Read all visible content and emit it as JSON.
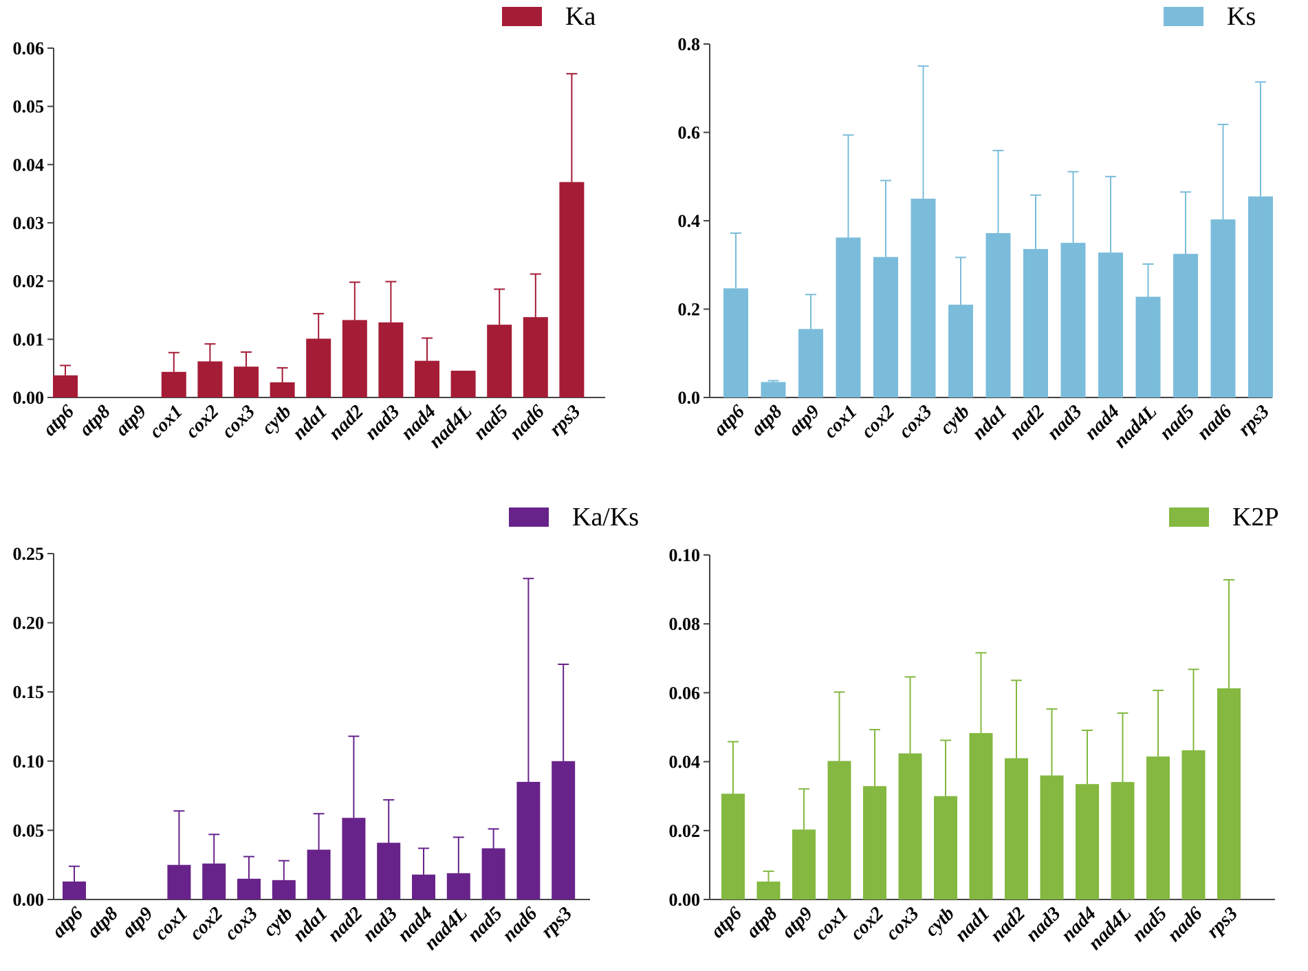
{
  "chart_data": [
    {
      "type": "bar",
      "legend": "Ka",
      "color": "#A51C36",
      "categories": [
        "atp6",
        "atp8",
        "atp9",
        "cox1",
        "cox2",
        "cox3",
        "cytb",
        "nda1",
        "nad2",
        "nad3",
        "nad4",
        "nad4L",
        "nad5",
        "nad6",
        "rps3"
      ],
      "values": [
        0.0038,
        0,
        0,
        0.0044,
        0.0062,
        0.0053,
        0.0026,
        0.0101,
        0.0133,
        0.0129,
        0.0063,
        0.0046,
        0.0125,
        0.0138,
        0.037
      ],
      "errors": [
        0.0017,
        0,
        0,
        0.0033,
        0.003,
        0.0025,
        0.0025,
        0.0043,
        0.0065,
        0.007,
        0.0039,
        0,
        0.0061,
        0.0074,
        0.0186
      ],
      "ylim": [
        0,
        0.06
      ],
      "yticks": [
        "0.00",
        "0.01",
        "0.02",
        "0.03",
        "0.04",
        "0.05",
        "0.06"
      ],
      "title": "",
      "xlabel": "",
      "ylabel": "",
      "legend_position": "top-right"
    },
    {
      "type": "bar",
      "legend": "Ks",
      "color": "#7BBCDB",
      "categories": [
        "atp6",
        "atp8",
        "atp9",
        "cox1",
        "cox2",
        "cox3",
        "cytb",
        "nda1",
        "nad2",
        "nad3",
        "nad4",
        "nad4L",
        "nad5",
        "nad6",
        "rps3"
      ],
      "values": [
        0.247,
        0.035,
        0.155,
        0.362,
        0.318,
        0.45,
        0.21,
        0.372,
        0.336,
        0.35,
        0.328,
        0.228,
        0.325,
        0.403,
        0.455
      ],
      "errors": [
        0.125,
        0.003,
        0.078,
        0.232,
        0.173,
        0.3,
        0.107,
        0.187,
        0.122,
        0.161,
        0.172,
        0.074,
        0.14,
        0.215,
        0.259
      ],
      "ylim": [
        0,
        0.8
      ],
      "yticks": [
        "0.0",
        "0.2",
        "0.4",
        "0.6",
        "0.8"
      ],
      "title": "",
      "xlabel": "",
      "ylabel": "",
      "legend_position": "top-right"
    },
    {
      "type": "bar",
      "legend": "Ka/Ks",
      "color": "#68238A",
      "categories": [
        "atp6",
        "atp8",
        "atp9",
        "cox1",
        "cox2",
        "cox3",
        "cytb",
        "nda1",
        "nad2",
        "nad3",
        "nad4",
        "nad4L",
        "nad5",
        "nad6",
        "rps3"
      ],
      "values": [
        0.013,
        0,
        0,
        0.025,
        0.026,
        0.015,
        0.014,
        0.036,
        0.059,
        0.041,
        0.018,
        0.019,
        0.037,
        0.085,
        0.1
      ],
      "errors": [
        0.011,
        0,
        0,
        0.039,
        0.021,
        0.016,
        0.014,
        0.026,
        0.059,
        0.031,
        0.019,
        0.026,
        0.014,
        0.147,
        0.07
      ],
      "ylim": [
        0,
        0.25
      ],
      "yticks": [
        "0.00",
        "0.05",
        "0.10",
        "0.15",
        "0.20",
        "0.25"
      ],
      "title": "",
      "xlabel": "",
      "ylabel": "",
      "legend_position": "top-right"
    },
    {
      "type": "bar",
      "legend": "K2P",
      "color": "#84B840",
      "categories": [
        "atp6",
        "atp8",
        "atp9",
        "cox1",
        "cox2",
        "cox3",
        "cytb",
        "nad1",
        "nad2",
        "nad3",
        "nad4",
        "nad4L",
        "nad5",
        "nad6",
        "rps3"
      ],
      "values": [
        0.0307,
        0.0052,
        0.0203,
        0.0402,
        0.0329,
        0.0424,
        0.03,
        0.0483,
        0.041,
        0.036,
        0.0335,
        0.0341,
        0.0415,
        0.0433,
        0.0613
      ],
      "errors": [
        0.0151,
        0.003,
        0.0118,
        0.02,
        0.0164,
        0.0222,
        0.0162,
        0.0233,
        0.0226,
        0.0193,
        0.0156,
        0.02,
        0.0192,
        0.0235,
        0.0315
      ],
      "ylim": [
        0,
        0.1
      ],
      "yticks": [
        "0.00",
        "0.02",
        "0.04",
        "0.06",
        "0.08",
        "0.10"
      ],
      "title": "",
      "xlabel": "",
      "ylabel": "",
      "legend_position": "top-right"
    }
  ]
}
